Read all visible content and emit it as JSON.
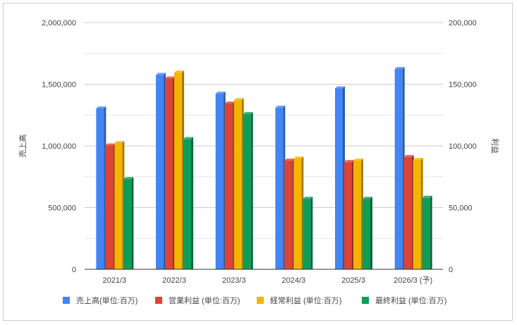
{
  "chart_data": {
    "type": "bar",
    "title": "",
    "categories": [
      "2021/3",
      "2022/3",
      "2023/3",
      "2024/3",
      "2025/3",
      "2026/3 (予)"
    ],
    "ylabel": "売上高",
    "y2label": "利益",
    "ylim": [
      0,
      2000000
    ],
    "y2lim": [
      0,
      200000
    ],
    "yticks": [
      "0",
      "500,000",
      "1,000,000",
      "1,500,000",
      "2,000,000"
    ],
    "y2ticks": [
      "0",
      "50,000",
      "100,000",
      "150,000",
      "200,000"
    ],
    "grid": true,
    "legend_position": "bottom",
    "series": [
      {
        "name": "売上高(単位:百万)",
        "axis": "left",
        "color": "#4285f4",
        "side": "#2a5aa8",
        "values": [
          1303000,
          1575000,
          1423000,
          1309000,
          1466000,
          1623000
        ]
      },
      {
        "name": "営業利益 (単位:百万)",
        "axis": "right",
        "color": "#db4437",
        "side": "#962d25",
        "values": [
          100300,
          154600,
          134300,
          88000,
          86900,
          90900
        ]
      },
      {
        "name": "経常利益 (単位:百万)",
        "axis": "right",
        "color": "#f4b400",
        "side": "#a67a00",
        "values": [
          102300,
          159400,
          137100,
          89700,
          88000,
          88600
        ]
      },
      {
        "name": "最終利益 (単位:百万)",
        "axis": "right",
        "color": "#0f9d58",
        "side": "#08683a",
        "values": [
          73100,
          105500,
          125700,
          57100,
          57100,
          57900
        ]
      }
    ]
  }
}
